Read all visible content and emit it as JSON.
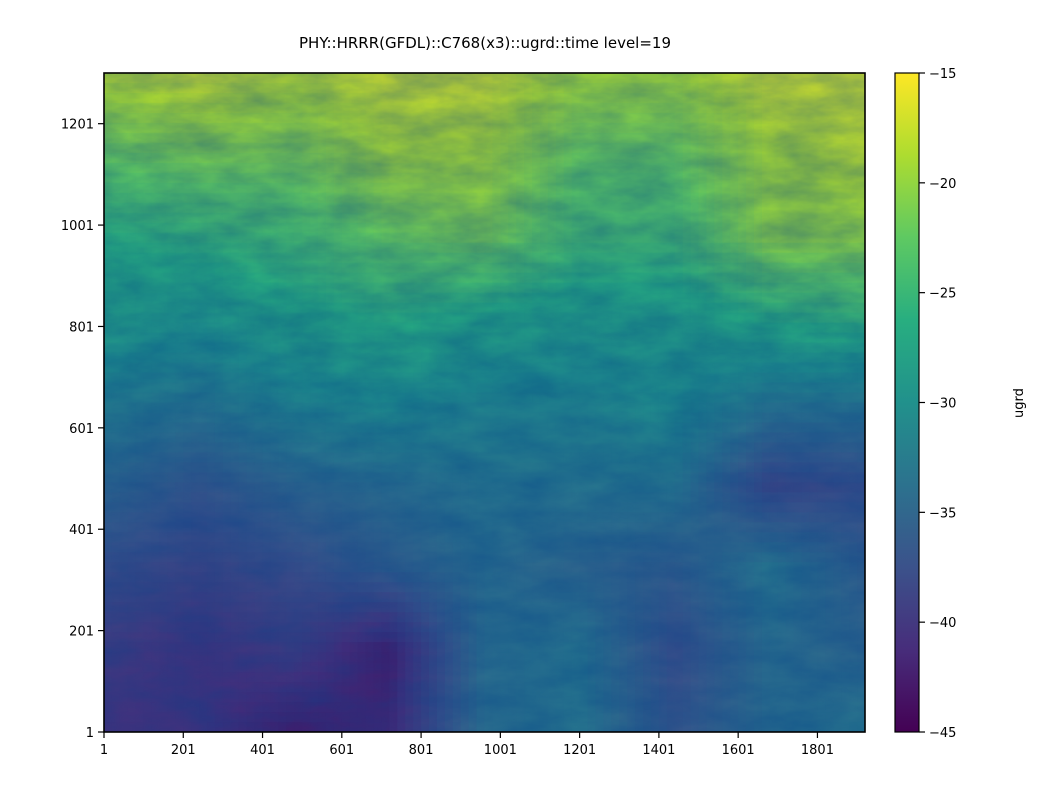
{
  "chart_data": {
    "type": "heatmap",
    "title": "PHY::HRRR(GFDL)::C768(x3)::ugrd::time level=19",
    "xlabel": "",
    "ylabel": "",
    "xlim": [
      1,
      1921
    ],
    "ylim": [
      1,
      1301
    ],
    "x_ticks": [
      {
        "value": 1,
        "label": "1"
      },
      {
        "value": 201,
        "label": "201"
      },
      {
        "value": 401,
        "label": "401"
      },
      {
        "value": 601,
        "label": "601"
      },
      {
        "value": 801,
        "label": "801"
      },
      {
        "value": 1001,
        "label": "1001"
      },
      {
        "value": 1201,
        "label": "1201"
      },
      {
        "value": 1401,
        "label": "1401"
      },
      {
        "value": 1601,
        "label": "1601"
      },
      {
        "value": 1801,
        "label": "1801"
      }
    ],
    "y_ticks": [
      {
        "value": 1,
        "label": "1"
      },
      {
        "value": 201,
        "label": "201"
      },
      {
        "value": 401,
        "label": "401"
      },
      {
        "value": 601,
        "label": "601"
      },
      {
        "value": 801,
        "label": "801"
      },
      {
        "value": 1001,
        "label": "1001"
      },
      {
        "value": 1201,
        "label": "1201"
      }
    ],
    "colorbar": {
      "label": "ugrd",
      "colormap": "viridis",
      "vmin": -45,
      "vmax": -15,
      "ticks": [
        {
          "value": -15,
          "label": "−15"
        },
        {
          "value": -20,
          "label": "−20"
        },
        {
          "value": -25,
          "label": "−25"
        },
        {
          "value": -30,
          "label": "−30"
        },
        {
          "value": -35,
          "label": "−35"
        },
        {
          "value": -40,
          "label": "−40"
        },
        {
          "value": -45,
          "label": "−45"
        }
      ]
    },
    "grid": false,
    "field_approx": {
      "x": [
        1,
        241,
        481,
        721,
        961,
        1201,
        1441,
        1681,
        1921
      ],
      "y": [
        1,
        163,
        326,
        488,
        651,
        813,
        976,
        1138,
        1301
      ],
      "values": [
        [
          -41,
          -41,
          -43,
          -42,
          -34,
          -33,
          -37,
          -34,
          -33
        ],
        [
          -40,
          -41,
          -40,
          -43,
          -34,
          -33,
          -38,
          -34,
          -35
        ],
        [
          -38,
          -39,
          -38,
          -36,
          -34,
          -35,
          -36,
          -33,
          -36
        ],
        [
          -35,
          -37,
          -35,
          -34,
          -33,
          -33,
          -33,
          -39,
          -38
        ],
        [
          -32,
          -33,
          -31,
          -30,
          -31,
          -31,
          -30,
          -33,
          -33
        ],
        [
          -28,
          -29,
          -27,
          -26,
          -27,
          -28,
          -28,
          -26,
          -25
        ],
        [
          -26,
          -25,
          -24,
          -22,
          -21,
          -24,
          -24,
          -20,
          -20
        ],
        [
          -22,
          -21,
          -21,
          -19,
          -19,
          -22,
          -22,
          -19,
          -18
        ],
        [
          -18,
          -17,
          -18,
          -17,
          -17,
          -19,
          -19,
          -17,
          -17
        ]
      ]
    }
  }
}
